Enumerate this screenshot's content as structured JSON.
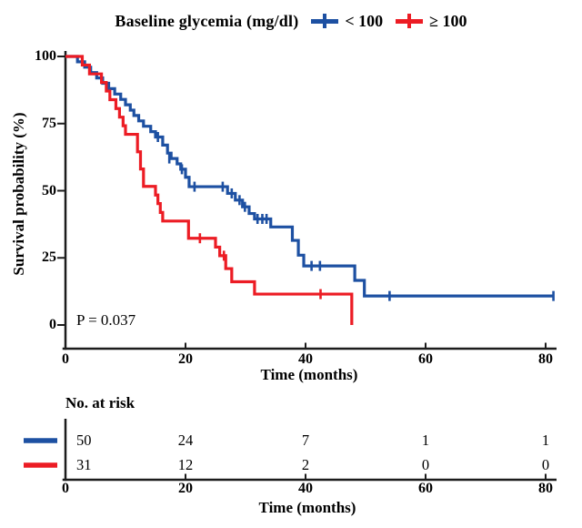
{
  "header": {
    "title": "Baseline glycemia (mg/dl)",
    "legend": [
      {
        "label": "< 100",
        "color": "#1d50a2"
      },
      {
        "label": "≥ 100",
        "color": "#ec1c24"
      }
    ]
  },
  "chart_data": {
    "type": "line",
    "subtype": "kaplan-meier-step-curves",
    "title": "Baseline glycemia (mg/dl)",
    "xlabel": "Time (months)",
    "ylabel": "Survival probability (%)",
    "annotation": "P = 0.037",
    "xlim": [
      0,
      84
    ],
    "ylim": [
      0,
      100
    ],
    "xticks": [
      0,
      20,
      40,
      60,
      80
    ],
    "yticks": [
      100,
      75,
      50,
      25,
      0
    ],
    "grid": false,
    "legend_position": "top",
    "axis_color": "#1c1c1c",
    "series": [
      {
        "name": "< 100",
        "color": "#1d50a2",
        "n_at_start": 50,
        "start": [
          0,
          100
        ],
        "steps": [
          [
            2,
            98
          ],
          [
            3.2,
            96
          ],
          [
            4.2,
            94
          ],
          [
            5.2,
            92
          ],
          [
            6.2,
            90
          ],
          [
            7.2,
            88
          ],
          [
            8.2,
            86
          ],
          [
            9.2,
            84
          ],
          [
            10,
            82
          ],
          [
            10.8,
            80
          ],
          [
            11.4,
            78
          ],
          [
            12.2,
            76
          ],
          [
            13,
            74
          ],
          [
            14.2,
            72
          ],
          [
            15,
            70
          ],
          [
            16.2,
            67
          ],
          [
            17,
            64
          ],
          [
            17.6,
            62
          ],
          [
            18.6,
            60
          ],
          [
            19.2,
            58
          ],
          [
            20,
            55
          ],
          [
            20.6,
            51.5
          ],
          [
            27,
            49
          ],
          [
            28.3,
            46.5
          ],
          [
            29.5,
            44
          ],
          [
            30.6,
            41.5
          ],
          [
            31.5,
            39.5
          ],
          [
            34.2,
            36.5
          ],
          [
            37.8,
            31.5
          ],
          [
            38.8,
            26
          ],
          [
            39.7,
            22
          ],
          [
            48.2,
            16.6
          ],
          [
            49.8,
            10.8
          ]
        ],
        "end_month": 81.3,
        "censors": [
          [
            15.4,
            70
          ],
          [
            17.3,
            62
          ],
          [
            19.4,
            58
          ],
          [
            21.5,
            51.5
          ],
          [
            26.2,
            51.5
          ],
          [
            27.7,
            49
          ],
          [
            29,
            46.5
          ],
          [
            29.9,
            44
          ],
          [
            32,
            39.5
          ],
          [
            32.8,
            39.5
          ],
          [
            33.5,
            39.5
          ],
          [
            41,
            22
          ],
          [
            42.4,
            22
          ],
          [
            54,
            10.8
          ],
          [
            81.3,
            10.8
          ]
        ]
      },
      {
        "name": "≥ 100",
        "color": "#ec1c24",
        "n_at_start": 31,
        "start": [
          0,
          100
        ],
        "steps": [
          [
            2.8,
            96.8
          ],
          [
            4,
            93.5
          ],
          [
            6,
            90.3
          ],
          [
            6.8,
            87.1
          ],
          [
            7.4,
            83.9
          ],
          [
            8.4,
            80.6
          ],
          [
            9,
            77.4
          ],
          [
            9.6,
            74.2
          ],
          [
            10,
            71
          ],
          [
            12,
            64.5
          ],
          [
            12.5,
            58.1
          ],
          [
            13,
            51.6
          ],
          [
            15,
            48.4
          ],
          [
            15.4,
            45.2
          ],
          [
            15.8,
            41.9
          ],
          [
            16.2,
            38.7
          ],
          [
            20.5,
            32.3
          ],
          [
            25,
            29
          ],
          [
            25.7,
            25.8
          ],
          [
            26.7,
            21
          ],
          [
            27.7,
            16.1
          ],
          [
            31.5,
            11.5
          ],
          [
            47.7,
            0
          ]
        ],
        "end_month": 47.7,
        "censors": [
          [
            22.4,
            32.3
          ],
          [
            26.4,
            25.8
          ],
          [
            42.5,
            11.5
          ]
        ]
      }
    ],
    "risk_table": {
      "title": "No. at risk",
      "xlabel": "Time (months)",
      "timepoints": [
        0,
        20,
        40,
        60,
        80
      ],
      "rows": [
        {
          "name": "< 100",
          "color": "#1d50a2",
          "values": [
            50,
            24,
            7,
            1,
            1
          ]
        },
        {
          "name": "≥ 100",
          "color": "#ec1c24",
          "values": [
            31,
            12,
            2,
            0,
            0
          ]
        }
      ]
    }
  }
}
